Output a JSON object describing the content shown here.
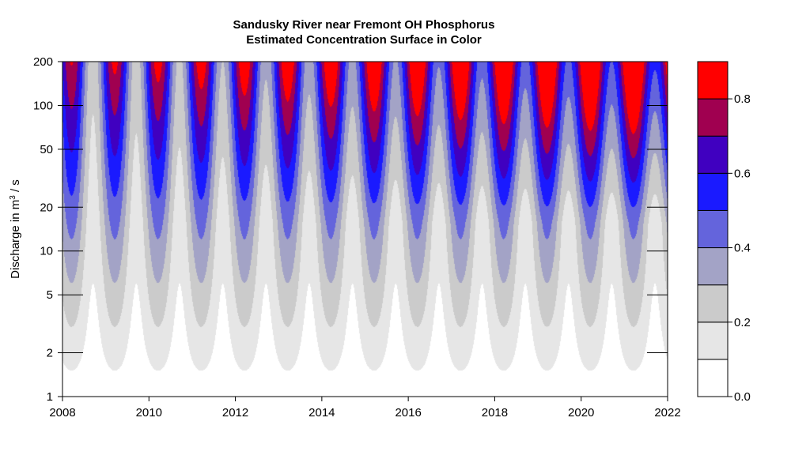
{
  "chart_data": {
    "type": "heatmap",
    "title": "Sandusky River near Fremont OH   Phosphorus",
    "subtitle": "Estimated Concentration Surface in Color",
    "xlabel": "",
    "ylabel": {
      "prefix": "Discharge in m",
      "superscript": "3",
      "suffix": " / s"
    },
    "x_range": [
      2008,
      2022
    ],
    "x_ticks": [
      "2008",
      "2010",
      "2012",
      "2014",
      "2016",
      "2018",
      "2020",
      "2022"
    ],
    "y_range": [
      1,
      200
    ],
    "y_scale": "log",
    "y_ticks": [
      "1",
      "2",
      "5",
      "10",
      "20",
      "50",
      "100",
      "200"
    ],
    "legend": {
      "placement": "right",
      "levels": [
        0.0,
        0.1,
        0.2,
        0.3,
        0.4,
        0.5,
        0.6,
        0.7,
        0.8,
        0.9
      ],
      "colors": [
        "#FFFFFF",
        "#E6E6E6",
        "#CBCBCB",
        "#A3A3C6",
        "#6464DC",
        "#1A1AFF",
        "#4000C0",
        "#A00050",
        "#FF0000"
      ],
      "tick_labels": [
        "0.0",
        "0.2",
        "0.4",
        "0.6",
        "0.8"
      ]
    },
    "surface_description": {
      "seasonal_period_years": 1,
      "peak_month_of_year": "late winter/spring",
      "trend": "concentration rises over time at high discharge"
    }
  }
}
